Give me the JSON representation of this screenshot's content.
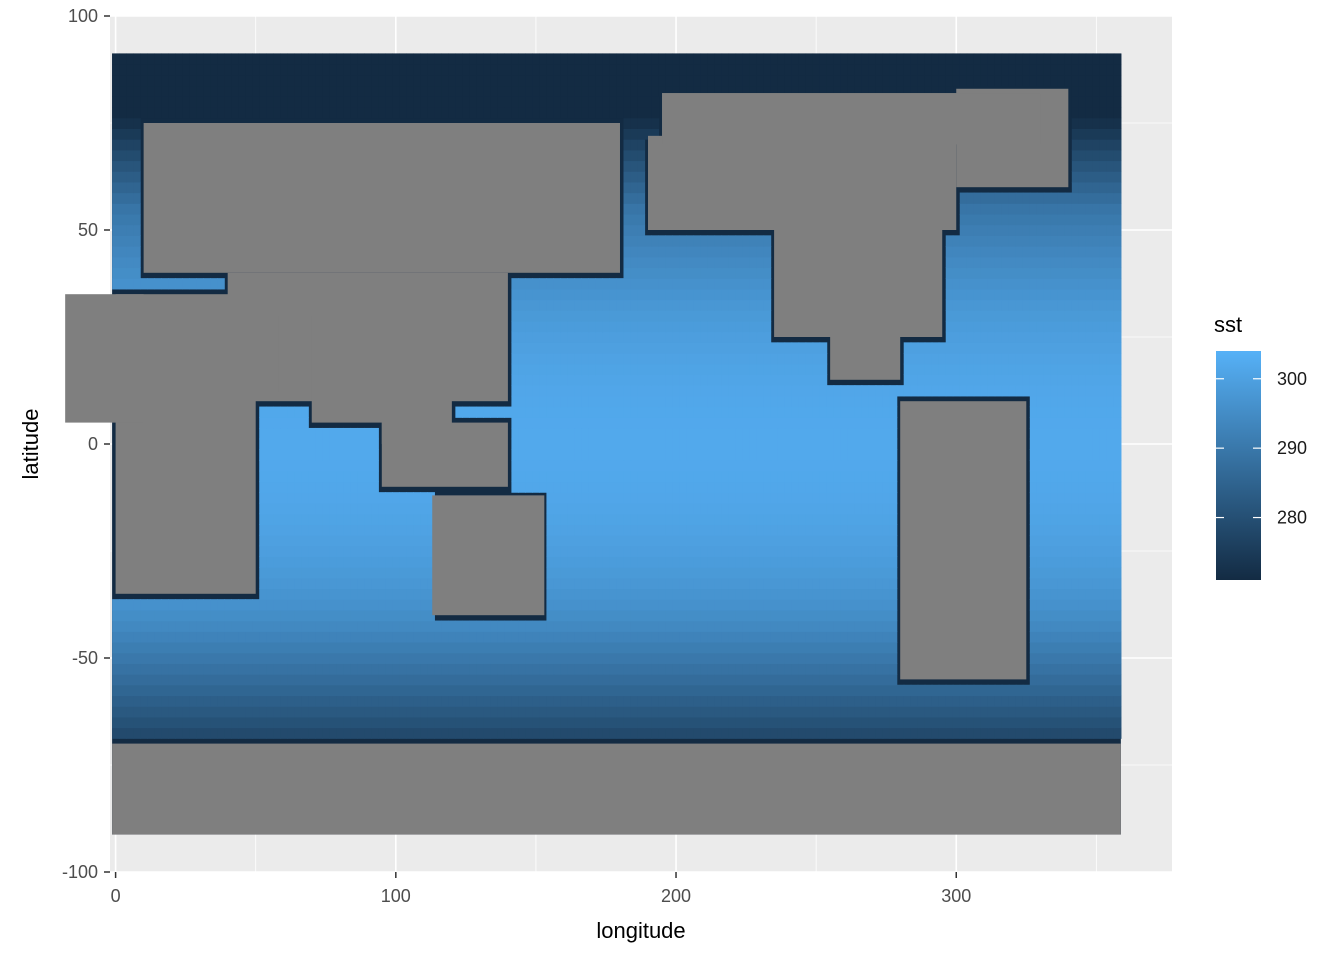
{
  "chart_data": {
    "type": "heatmap",
    "title": "",
    "xlabel": "longitude",
    "ylabel": "latitude",
    "xlim": [
      -2,
      377
    ],
    "ylim": [
      -100,
      100
    ],
    "x_ticks": [
      0,
      100,
      200,
      300
    ],
    "y_ticks": [
      100,
      50,
      0,
      -50,
      -100
    ],
    "x_tick_labels": [
      "0",
      "100",
      "200",
      "300"
    ],
    "y_tick_labels": [
      "100",
      "50",
      "0",
      "-50",
      "-100"
    ],
    "grid": true,
    "panel_background": "#ebebeb",
    "land_color": "#7f7f7f",
    "data_extent": {
      "lon": [
        -1.25,
        358.75
      ],
      "lat": [
        -91.25,
        91.25
      ]
    },
    "grid_resolution_deg": 2.5,
    "legend": {
      "title": "sst",
      "position": "right",
      "min": 271,
      "max": 304,
      "ticks": [
        280,
        290,
        300
      ],
      "tick_labels": [
        "280",
        "290",
        "300"
      ],
      "color_low": "#132b43",
      "color_high": "#56b1f7"
    }
  }
}
